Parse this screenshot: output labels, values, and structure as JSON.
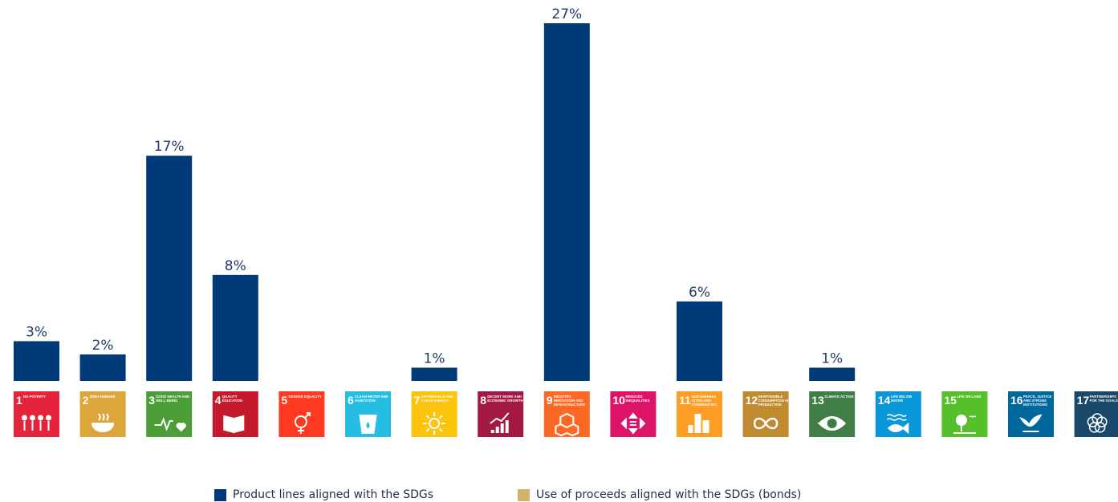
{
  "chart_data": {
    "type": "bar",
    "categories": [
      "1",
      "2",
      "3",
      "4",
      "5",
      "6",
      "7",
      "8",
      "9",
      "10",
      "11",
      "12",
      "13",
      "14",
      "15",
      "16",
      "17"
    ],
    "series": [
      {
        "name": "Product lines aligned with the SDGs",
        "color": "#003a78",
        "values": [
          3,
          2,
          17,
          8,
          0,
          0,
          1,
          0,
          27,
          0,
          6,
          0,
          1,
          0,
          0,
          0,
          0
        ]
      },
      {
        "name": "Use of proceeds aligned with the SDGs (bonds)",
        "color": "#d2b26a",
        "values": [
          0,
          0,
          0,
          0,
          0,
          0,
          0,
          0,
          0,
          0,
          0,
          0,
          0,
          0,
          0,
          0,
          0
        ]
      }
    ],
    "data_labels": [
      "3%",
      "2%",
      "17%",
      "8%",
      "",
      "",
      "1%",
      "",
      "27%",
      "",
      "6%",
      "",
      "1%",
      "",
      "",
      "",
      ""
    ],
    "ylim": [
      0,
      28
    ],
    "grid": false,
    "legend_position": "bottom"
  },
  "sdg_tiles": [
    {
      "number": "1",
      "title": "NO POVERTY",
      "icon": "people-family-icon",
      "color": "#e5243b"
    },
    {
      "number": "2",
      "title": "ZERO HUNGER",
      "icon": "bowl-icon",
      "color": "#dda63a"
    },
    {
      "number": "3",
      "title": "GOOD HEALTH AND WELL-BEING",
      "icon": "heartbeat-icon",
      "color": "#4c9f38"
    },
    {
      "number": "4",
      "title": "QUALITY EDUCATION",
      "icon": "book-icon",
      "color": "#c5192d"
    },
    {
      "number": "5",
      "title": "GENDER EQUALITY",
      "icon": "gender-icon",
      "color": "#ff3a21"
    },
    {
      "number": "6",
      "title": "CLEAN WATER AND SANITATION",
      "icon": "water-glass-icon",
      "color": "#26bde2"
    },
    {
      "number": "7",
      "title": "AFFORDABLE AND CLEAN ENERGY",
      "icon": "sun-icon",
      "color": "#fcc30b"
    },
    {
      "number": "8",
      "title": "DECENT WORK AND ECONOMIC GROWTH",
      "icon": "growth-chart-icon",
      "color": "#a21942"
    },
    {
      "number": "9",
      "title": "INDUSTRY, INNOVATION AND INFRASTRUCTURE",
      "icon": "cubes-icon",
      "color": "#fd6925"
    },
    {
      "number": "10",
      "title": "REDUCED INEQUALITIES",
      "icon": "equal-arrows-icon",
      "color": "#dd1367"
    },
    {
      "number": "11",
      "title": "SUSTAINABLE CITIES AND COMMUNITIES",
      "icon": "city-icon",
      "color": "#fd9d24"
    },
    {
      "number": "12",
      "title": "RESPONSIBLE CONSUMPTION AND PRODUCTION",
      "icon": "infinity-icon",
      "color": "#bf8b2e"
    },
    {
      "number": "13",
      "title": "CLIMATE ACTION",
      "icon": "eye-globe-icon",
      "color": "#3f7e44"
    },
    {
      "number": "14",
      "title": "LIFE BELOW WATER",
      "icon": "fish-icon",
      "color": "#0a97d9"
    },
    {
      "number": "15",
      "title": "LIFE ON LAND",
      "icon": "tree-icon",
      "color": "#56c02b"
    },
    {
      "number": "16",
      "title": "PEACE, JUSTICE AND STRONG INSTITUTIONS",
      "icon": "dove-gavel-icon",
      "color": "#00689d"
    },
    {
      "number": "17",
      "title": "PARTNERSHIPS FOR THE GOALS",
      "icon": "rings-icon",
      "color": "#19486a"
    }
  ],
  "legend": {
    "product_label": "Product lines aligned with the SDGs",
    "bonds_label": "Use of proceeds aligned with the SDGs (bonds)",
    "product_color": "#003a78",
    "bonds_color": "#d2b26a"
  }
}
